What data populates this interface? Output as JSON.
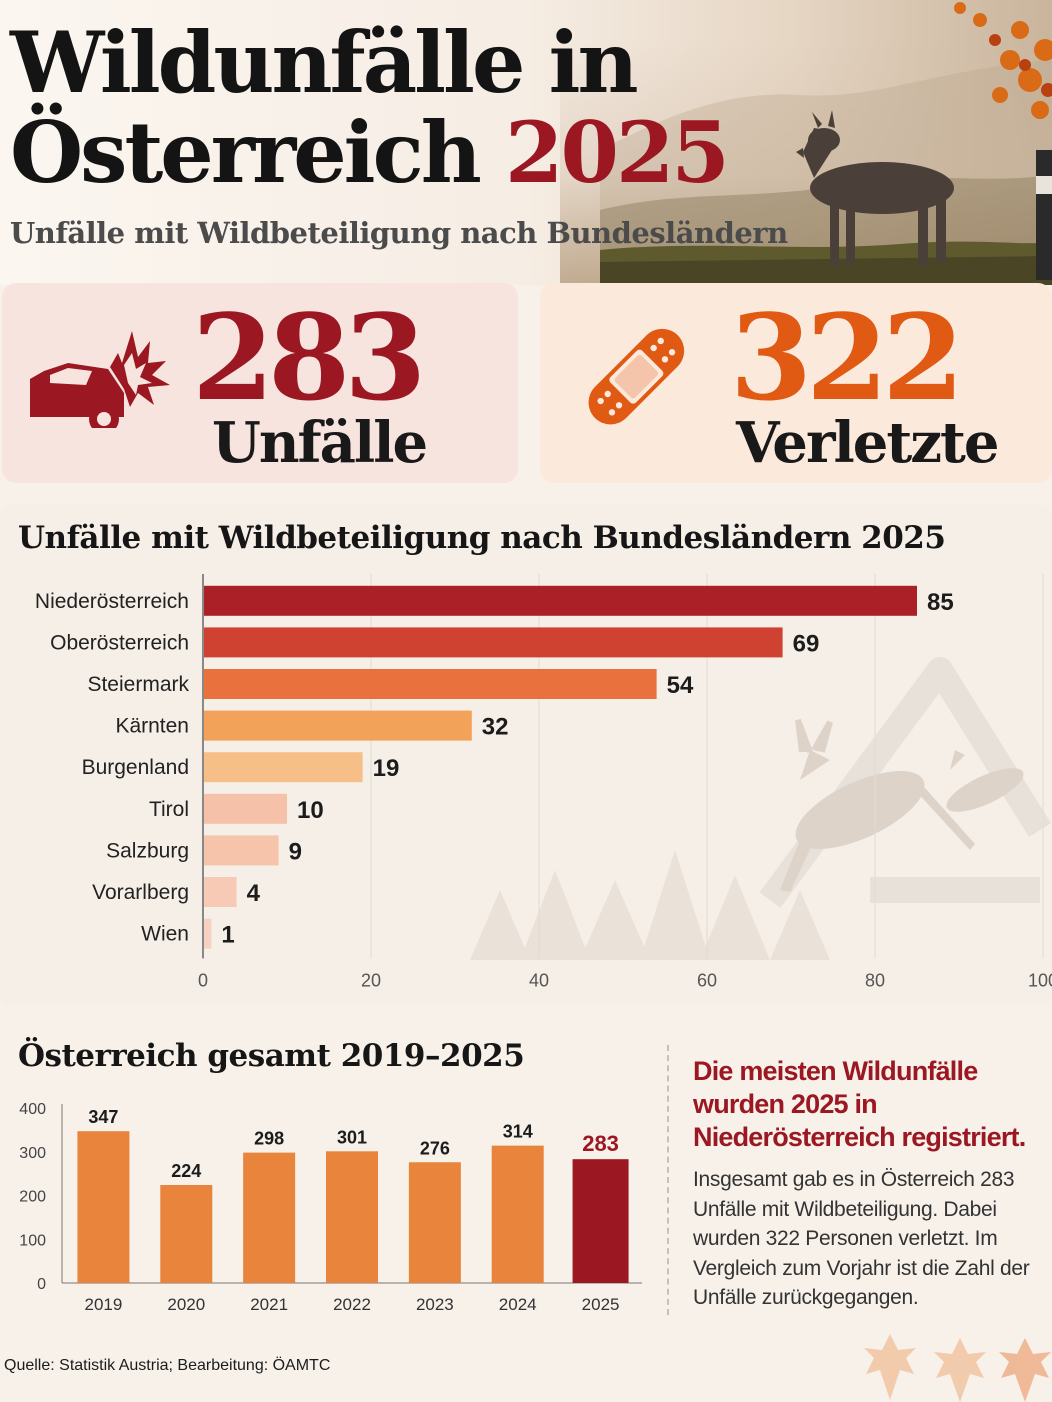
{
  "header": {
    "title_line1": "Wildunfälle in",
    "title_line2": "Österreich",
    "title_year": "2025",
    "subtitle": "Unfälle mit Wildbeteiligung nach Bundesländern"
  },
  "kpis": [
    {
      "value": "283",
      "label": "Unfälle",
      "icon": "car-crash-icon",
      "color": "#9b1722"
    },
    {
      "value": "322",
      "label": "Verletzte",
      "icon": "bandage-icon",
      "color": "#e05a14"
    }
  ],
  "chart_data": [
    {
      "type": "bar",
      "orientation": "horizontal",
      "title": "Unfälle mit Wildbeteiligung nach Bundesländern 2025",
      "categories": [
        "Niederösterreich",
        "Oberösterreich",
        "Steiermark",
        "Kärnten",
        "Burgenland",
        "Tirol",
        "Salzburg",
        "Vorarlberg",
        "Wien"
      ],
      "values": [
        85,
        69,
        54,
        32,
        19,
        10,
        9,
        4,
        1
      ],
      "colors": [
        "#ab2027",
        "#cf4231",
        "#e8713d",
        "#f2a259",
        "#f6bf88",
        "#f5c1a8",
        "#f6c4aa",
        "#f6cab4",
        "#f6d0c0"
      ],
      "xlim": [
        0,
        100
      ],
      "xticks": [
        "0",
        "20",
        "40",
        "60",
        "80",
        "100"
      ],
      "grid": true
    },
    {
      "type": "bar",
      "title": "Österreich gesamt 2019–2025",
      "categories": [
        "2019",
        "2020",
        "2021",
        "2022",
        "2023",
        "2024",
        "2025"
      ],
      "values": [
        347,
        224,
        298,
        301,
        276,
        314,
        283
      ],
      "colors": [
        "#e8843c",
        "#e8843c",
        "#e8843c",
        "#e8843c",
        "#e8843c",
        "#e8843c",
        "#9b1722"
      ],
      "ylim": [
        0,
        400
      ],
      "yticks": [
        "0",
        "100",
        "200",
        "300",
        "400"
      ],
      "grid": false
    }
  ],
  "note": {
    "headline": "Die meisten Wildunfälle wurden 2025 in Niederösterreich registriert.",
    "body": "Insgesamt gab es in Österreich 283 Unfälle mit Wildbeteiligung. Dabei wurden 322 Personen verletzt. Im Vergleich zum Vorjahr ist die Zahl der Unfälle zurückgegangen."
  },
  "source": {
    "label": "Quelle:",
    "text": "Statistik Austria; Bearbeitung: ÖAMTC"
  },
  "icons": [
    "deer-photo",
    "deer-warning-sign-icon",
    "maple-leaf-icon"
  ]
}
